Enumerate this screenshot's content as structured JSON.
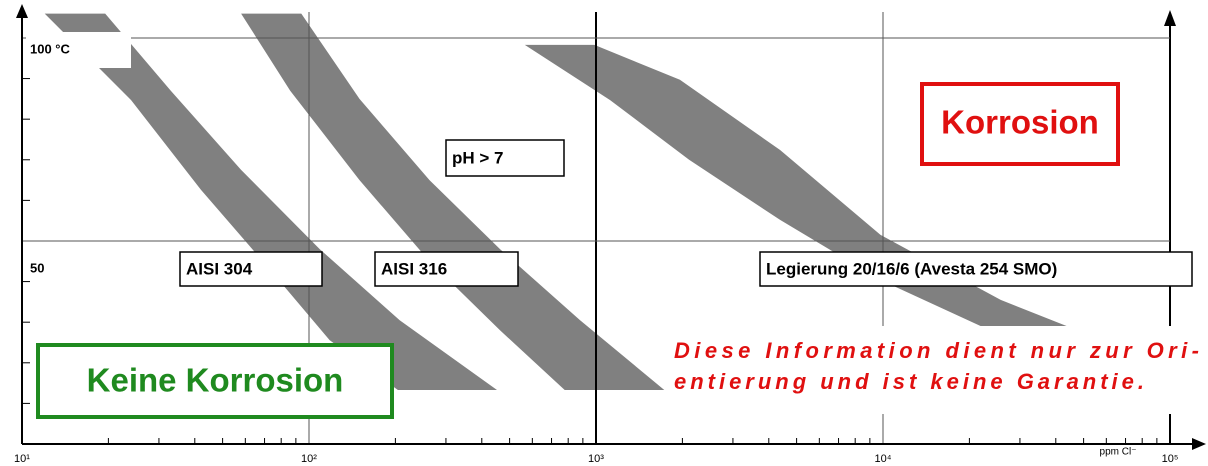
{
  "chart_data": {
    "type": "band",
    "xlabel": "ppm Cl⁻",
    "log_x": true,
    "xlim": [
      10,
      100000
    ],
    "ylim": [
      0,
      106
    ],
    "xticks": [
      {
        "value": 10,
        "label": "10¹"
      },
      {
        "value": 100,
        "label": "10²"
      },
      {
        "value": 1000,
        "label": "10³"
      },
      {
        "value": 10000,
        "label": "10⁴"
      },
      {
        "value": 100000,
        "label": "10⁵"
      }
    ],
    "yticks": [
      {
        "value": 100,
        "label": "100 °C"
      },
      {
        "value": 50,
        "label": "50"
      }
    ],
    "yminorticks": [
      10,
      20,
      30,
      40,
      60,
      70,
      80,
      90
    ],
    "color": "#808080",
    "series": [
      {
        "name": "AISI 304",
        "x": [
          12,
          19.5,
          33,
          58,
          109,
          207,
          452,
          204,
          118,
          73,
          42,
          24
        ],
        "y": [
          106,
          106,
          87,
          67.5,
          48,
          30.5,
          13.3,
          13.3,
          25.6,
          43,
          62.6,
          84.7
        ]
      },
      {
        "name": "AISI 316",
        "x": [
          58,
          94,
          150,
          263,
          463,
          880,
          1730,
          778,
          463,
          263,
          150,
          86
        ],
        "y": [
          106,
          106,
          85,
          65,
          48,
          30.5,
          13.3,
          13.3,
          28,
          45,
          65,
          87
        ]
      },
      {
        "name": "Legierung 20/16/6 (Avesta 254 SMO)",
        "x": [
          565,
          987,
          1960,
          4380,
          9800,
          25700,
          45300,
          22600,
          9800,
          4380,
          2110,
          1120
        ],
        "y": [
          98.3,
          98.3,
          89.7,
          72.4,
          51.5,
          35.5,
          28.6,
          28.6,
          40.4,
          55.2,
          70,
          84.7
        ]
      }
    ],
    "annotations": {
      "ph": "pH > 7",
      "corrosion": "Korrosion",
      "no_corrosion": "Keine Korrosion",
      "note": [
        "Diese Information dient nur zur Ori-",
        "entierung und ist keine Garantie."
      ]
    }
  }
}
